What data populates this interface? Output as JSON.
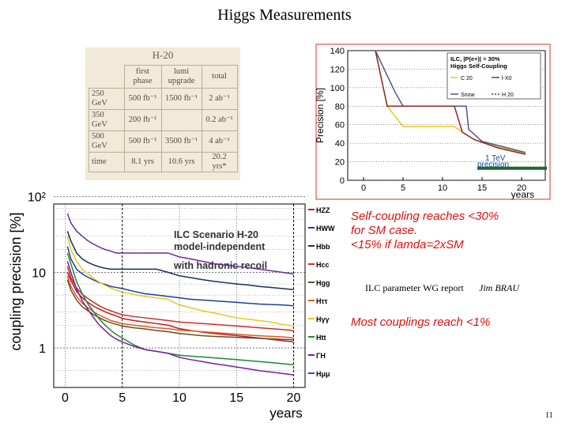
{
  "slide": {
    "title": "Higgs Measurements",
    "note1_lines": [
      "Self-coupling reaches <30%",
      "for SM case.",
      "<15% if lamda=2xSM"
    ],
    "report": "ILC parameter WG report",
    "author": "Jim BRAU",
    "note2": "Most couplings reach <1%",
    "page_number": "11"
  },
  "table": {
    "title": "H-20",
    "headers": [
      "",
      "first phase",
      "lumi upgrade",
      "total"
    ],
    "rows": [
      [
        "250 GeV",
        "500 fb⁻¹",
        "1500 fb⁻¹",
        "2 ab⁻¹"
      ],
      [
        "350 GeV",
        "200 fb⁻¹",
        "",
        "0.2 ab⁻¹"
      ],
      [
        "500 GeV",
        "500 fb⁻¹",
        "3500 fb⁻¹",
        "4 ab⁻¹"
      ],
      [
        "time",
        "8.1 yrs",
        "10.6 yrs",
        "20.2 yrs*"
      ]
    ]
  },
  "colors": {
    "hzz": "#c0182a",
    "hww": "#1a3f9c",
    "hbb": "#15305a",
    "hcc": "#d0301e",
    "hgg": "#6a4a2a",
    "htautau": "#e05a18",
    "hgamgam": "#e8c81c",
    "htt": "#1d8a2a",
    "gammaH": "#7a1ea0",
    "hmumu": "#6a2aa0",
    "c20": "#e8c81c",
    "snow": "#4a5a8a",
    "lx0": "#1a6a3a",
    "h20": "#8a2a2a",
    "tev": "#1d6a2a"
  },
  "chart_data": [
    {
      "type": "line",
      "title": "ILC, |P(e+)| = 30% Higgs Self-Coupling",
      "xlabel": "years",
      "ylabel": "Precision [%]",
      "xlim": [
        -2,
        23
      ],
      "ylim": [
        0,
        140
      ],
      "xticks": [
        0,
        5,
        10,
        15,
        20
      ],
      "yticks": [
        0,
        20,
        40,
        60,
        80,
        100,
        120,
        140
      ],
      "annotation": "1 TeV precision",
      "annotation_level": 13,
      "series": [
        {
          "name": "C 20",
          "color_key": "c20",
          "x": [
            1.5,
            3.0,
            5.0,
            11.5,
            12.5,
            14.0,
            17.0,
            20.0,
            20.5
          ],
          "y": [
            140,
            80,
            58,
            58,
            52,
            44,
            36,
            30,
            29
          ]
        },
        {
          "name": "Snow",
          "color_key": "snow",
          "x": [
            1.5,
            4.0,
            5.0,
            13.0,
            13.3,
            15.0,
            20.5
          ],
          "y": [
            140,
            95,
            80,
            80,
            55,
            42,
            30
          ]
        },
        {
          "name": "H 20",
          "color_key": "h20",
          "x": [
            1.5,
            3.0,
            11.5,
            12.5,
            14.0,
            17.0,
            20.0,
            20.5
          ],
          "y": [
            140,
            80,
            80,
            52,
            44,
            35,
            29,
            28
          ]
        },
        {
          "name": "l-X0",
          "color_key": "lx0",
          "x": [],
          "y": []
        }
      ]
    },
    {
      "type": "line",
      "title": "ILC Scenario H-20 model-independent with hadronic recoil",
      "xlabel": "years",
      "ylabel": "coupling precision [%]",
      "yscale": "log",
      "xlim": [
        -1,
        21
      ],
      "ylim": [
        0.3,
        80
      ],
      "xticks": [
        0,
        5,
        10,
        15,
        20
      ],
      "yticks": [
        {
          "value": 1,
          "label": "1"
        },
        {
          "value": 10,
          "label": "10"
        },
        {
          "value": 100,
          "label": "10²"
        }
      ],
      "x": [
        0.2,
        0.5,
        1,
        1.5,
        2,
        2.5,
        3,
        3.5,
        4,
        4.5,
        5,
        6,
        7,
        8,
        9,
        10,
        11,
        12,
        13,
        14,
        15,
        16,
        17,
        18,
        19,
        20
      ],
      "series": [
        {
          "name": "HZZ",
          "color_key": "hzz",
          "y": [
            10,
            7.8,
            5.6,
            4.6,
            4.0,
            3.55,
            3.25,
            3.0,
            2.8,
            2.65,
            2.45,
            2.3,
            2.2,
            2.1,
            2.0,
            1.8,
            1.7,
            1.62,
            1.55,
            1.5,
            1.45,
            1.4,
            1.35,
            1.3,
            1.25,
            1.2
          ]
        },
        {
          "name": "HWW",
          "color_key": "hww",
          "y": [
            22,
            15,
            11,
            9.5,
            8.6,
            7.9,
            7.3,
            6.9,
            6.5,
            6.3,
            6.1,
            5.6,
            5.2,
            5.0,
            4.8,
            4.6,
            4.4,
            4.3,
            4.2,
            4.1,
            4.0,
            3.9,
            3.8,
            3.75,
            3.7,
            3.6
          ]
        },
        {
          "name": "Hbb",
          "color_key": "hbb",
          "y": [
            35,
            26,
            18,
            15,
            13.5,
            12.5,
            11.8,
            11.3,
            11.0,
            11.0,
            11.0,
            11.0,
            11.0,
            11.0,
            10.0,
            9.0,
            8.5,
            8.0,
            7.6,
            7.3,
            7.0,
            6.8,
            6.5,
            6.3,
            6.1,
            5.9
          ]
        },
        {
          "name": "Hcc",
          "color_key": "hcc",
          "y": [
            12,
            8.5,
            6.2,
            5.1,
            4.5,
            4.0,
            3.6,
            3.3,
            3.1,
            2.9,
            2.75,
            2.6,
            2.5,
            2.4,
            2.3,
            2.2,
            2.15,
            2.1,
            2.05,
            2.0,
            1.95,
            1.9,
            1.85,
            1.8,
            1.75,
            1.7
          ]
        },
        {
          "name": "Hgg",
          "color_key": "hgg",
          "y": [
            8,
            5.8,
            4.3,
            3.5,
            3.1,
            2.75,
            2.5,
            2.3,
            2.15,
            2.05,
            1.95,
            1.85,
            1.78,
            1.7,
            1.64,
            1.55,
            1.5,
            1.45,
            1.42,
            1.4,
            1.38,
            1.36,
            1.34,
            1.32,
            1.3,
            1.28
          ]
        },
        {
          "name": "Hττ",
          "color_key": "htautau",
          "y": [
            9,
            6.5,
            4.8,
            3.9,
            3.4,
            3.0,
            2.7,
            2.5,
            2.3,
            2.2,
            2.1,
            2.0,
            1.92,
            1.85,
            1.8,
            1.72,
            1.68,
            1.64,
            1.6,
            1.56,
            1.52,
            1.48,
            1.45,
            1.42,
            1.4,
            1.36
          ]
        },
        {
          "name": "Hγγ",
          "color_key": "hgamgam",
          "y": [
            30,
            20,
            14,
            11,
            9.5,
            8.3,
            7.4,
            6.7,
            6.2,
            5.8,
            5.5,
            5.1,
            4.8,
            4.6,
            4.4,
            3.7,
            3.4,
            3.1,
            2.9,
            2.7,
            2.5,
            2.4,
            2.3,
            2.2,
            2.05,
            1.95
          ]
        },
        {
          "name": "Htt",
          "color_key": "htt",
          "y": [
            18,
            13,
            7.5,
            5.2,
            3.8,
            3.0,
            2.4,
            2.0,
            1.7,
            1.5,
            1.35,
            1.1,
            0.95,
            0.9,
            0.85,
            0.8,
            0.78,
            0.76,
            0.74,
            0.72,
            0.7,
            0.68,
            0.66,
            0.64,
            0.62,
            0.6
          ]
        },
        {
          "name": "ΓH",
          "color_key": "gammaH",
          "y": [
            14,
            10,
            6.0,
            4.2,
            3.2,
            2.5,
            2.0,
            1.7,
            1.45,
            1.3,
            1.2,
            1.05,
            0.95,
            0.9,
            0.85,
            0.75,
            0.7,
            0.66,
            0.62,
            0.59,
            0.56,
            0.53,
            0.5,
            0.48,
            0.46,
            0.44
          ]
        },
        {
          "name": "Hμμ",
          "color_key": "hmumu",
          "y": [
            60,
            45,
            35,
            30,
            26,
            23.5,
            21.5,
            20,
            19,
            18,
            18,
            18,
            18,
            18,
            18,
            16,
            15,
            14,
            13,
            12.5,
            12,
            11.5,
            11,
            10.5,
            10,
            9.5
          ]
        }
      ]
    }
  ]
}
